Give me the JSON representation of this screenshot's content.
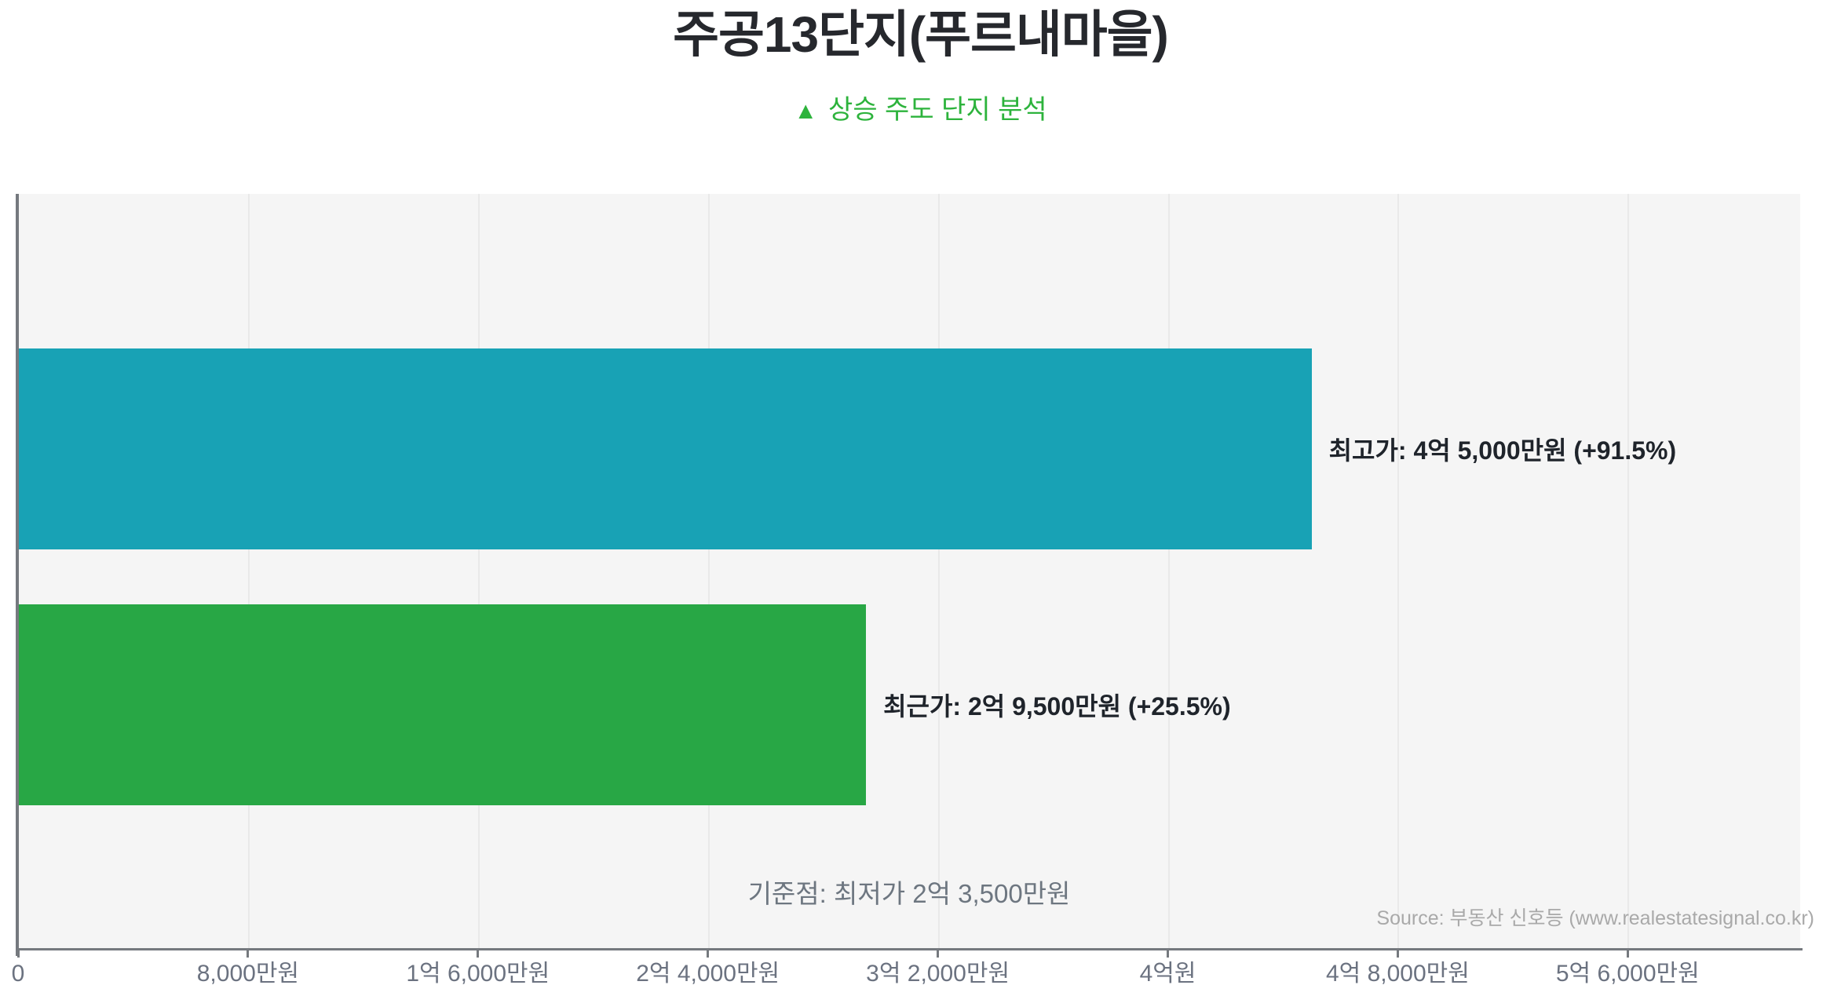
{
  "title": "주공13단지(푸르내마을)",
  "subtitle": {
    "icon": "▲",
    "text": "상승 주도 단지 분석"
  },
  "chart_data": {
    "type": "bar",
    "orientation": "horizontal",
    "title": "주공13단지(푸르내마을)",
    "subtitle": "▲ 상승 주도 단지 분석",
    "x_axis": {
      "unit": "만원",
      "min": 0,
      "max": 62000,
      "tick_interval": 8000,
      "grid": true,
      "ticks": [
        {
          "value": 0,
          "label": "0"
        },
        {
          "value": 8000,
          "label": "8,000만원"
        },
        {
          "value": 16000,
          "label": "1억 6,000만원"
        },
        {
          "value": 24000,
          "label": "2억 4,000만원"
        },
        {
          "value": 32000,
          "label": "3억 2,000만원"
        },
        {
          "value": 40000,
          "label": "4억원"
        },
        {
          "value": 48000,
          "label": "4억 8,000만원"
        },
        {
          "value": 56000,
          "label": "5억 6,000만원"
        }
      ]
    },
    "bars": [
      {
        "name": "highest-price",
        "label": "최고가: 4억 5,000만원 (+91.5%)",
        "value": 45000,
        "change": "+91.5%",
        "color": "#18a2b5"
      },
      {
        "name": "recent-price",
        "label": "최근가: 2억 9,500만원 (+25.5%)",
        "value": 29500,
        "change": "+25.5%",
        "color": "#28a745"
      }
    ],
    "baseline_note": "기준점: 최저가 2억 3,500만원",
    "source": "Source: 부동산 신호등 (www.realestatesignal.co.kr)"
  },
  "colors": {
    "plot_background": "#f5f5f5",
    "gridline": "#e9e9e9",
    "axis": "#75797e",
    "title_text": "#26282d",
    "subtitle_text": "#2db33c",
    "bar_highest": "#18a2b5",
    "bar_recent": "#28a745",
    "bar_label_text": "#1f242b",
    "tick_label_text": "#6b7280",
    "note_text": "#6d7680",
    "source_text": "#a9a9a9"
  }
}
